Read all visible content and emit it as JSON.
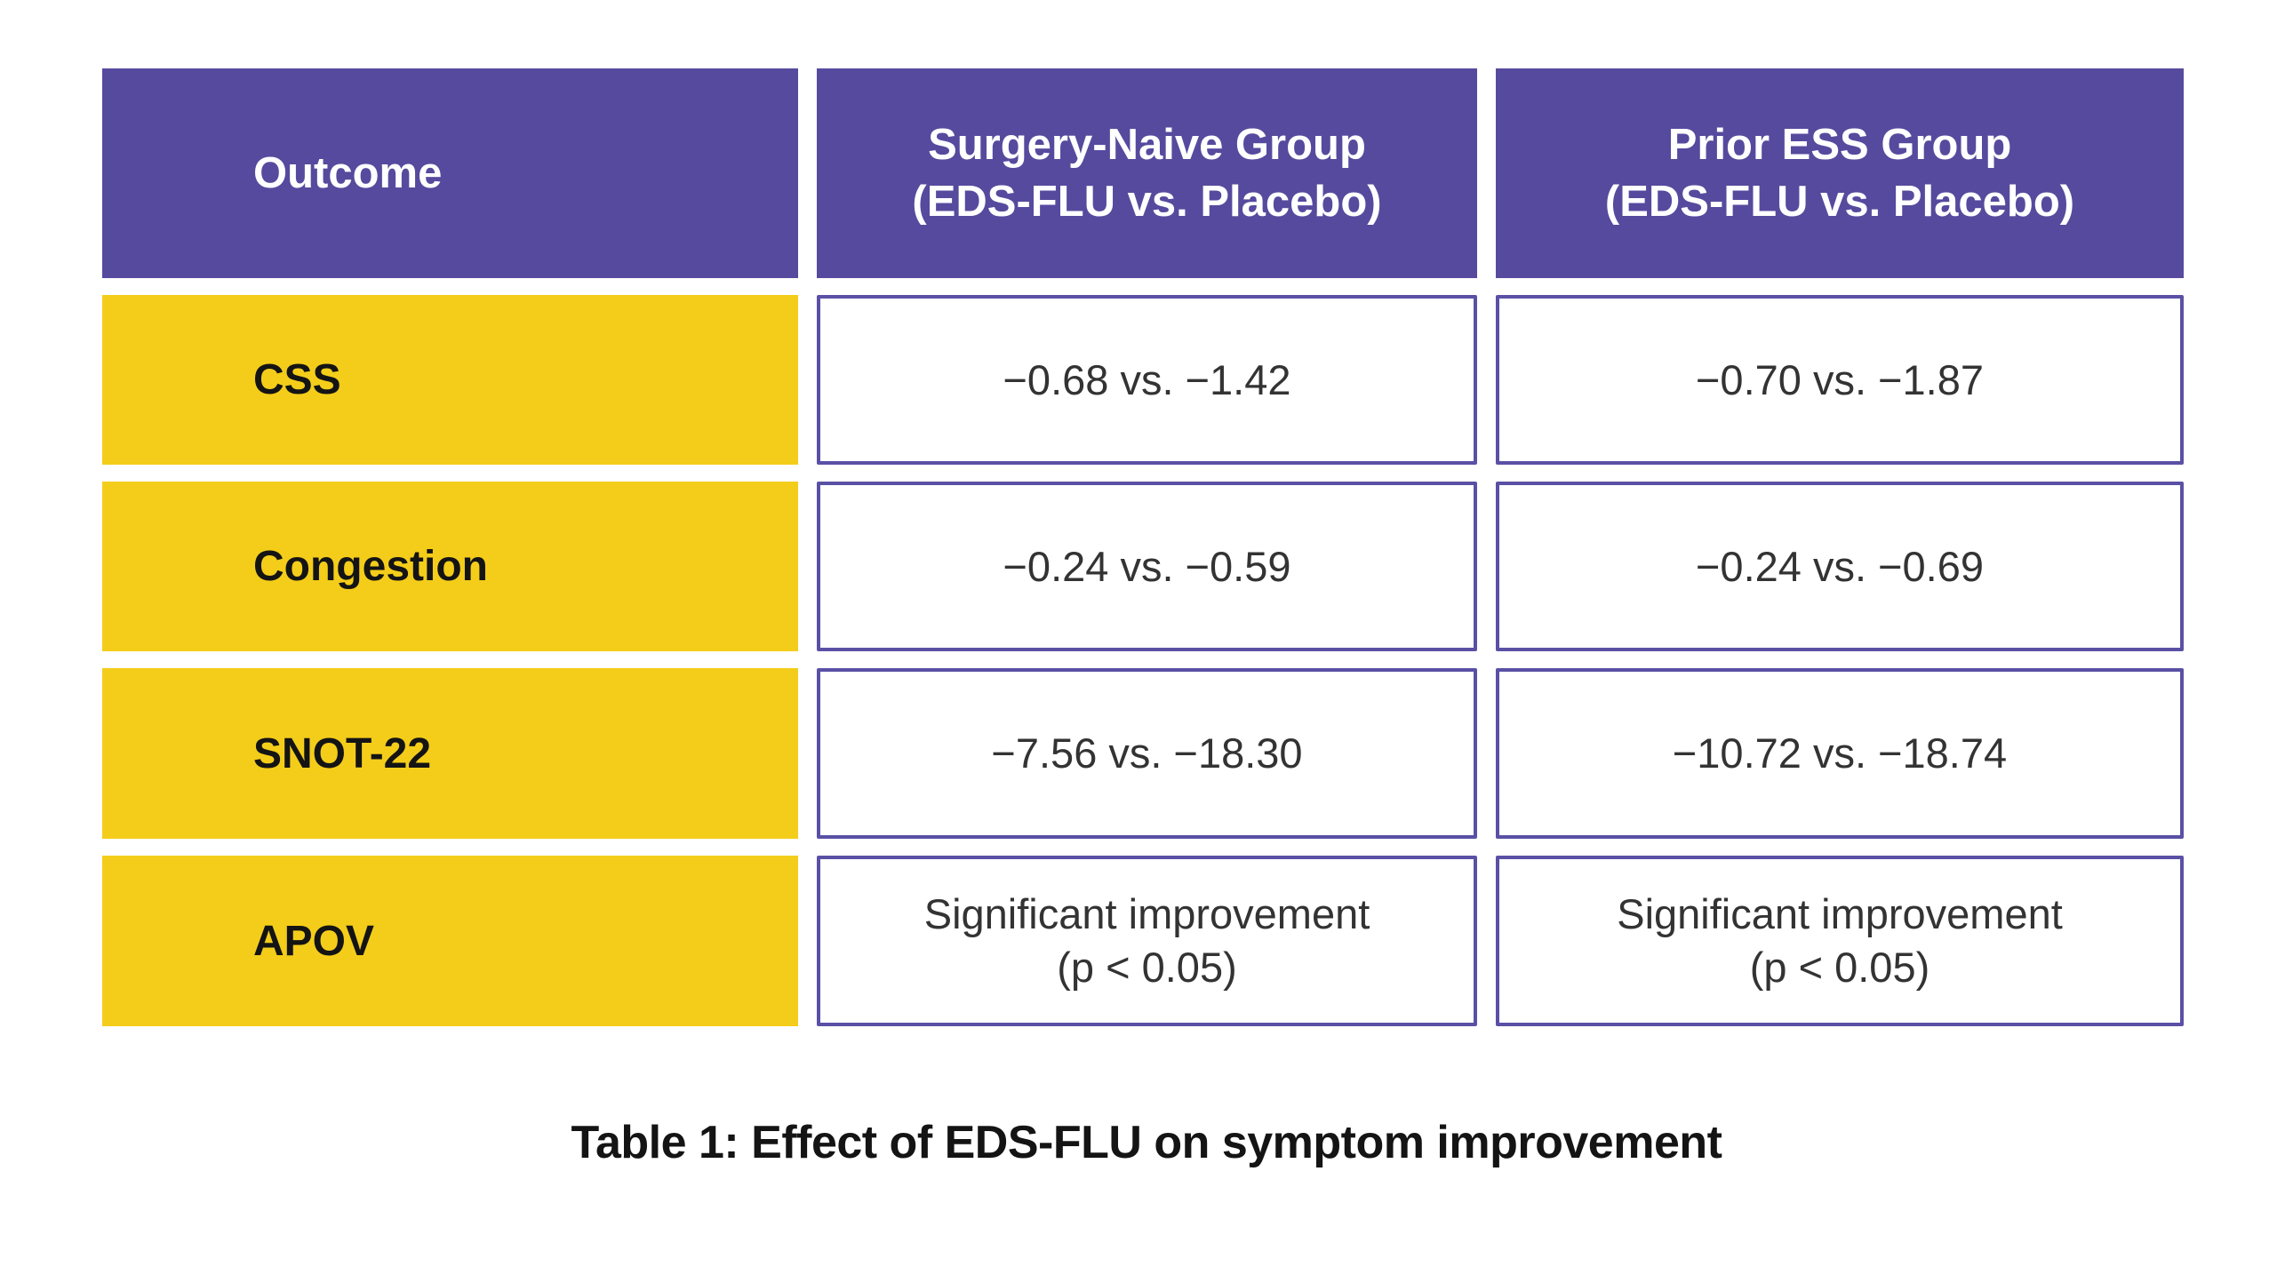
{
  "colors": {
    "header_bg": "#564A9E",
    "header_text": "#FFFFFF",
    "label_bg": "#F4CD1A",
    "label_text": "#141414",
    "cell_border": "#5A50A5",
    "cell_bg": "#FFFFFF",
    "cell_text": "#333333",
    "caption_text": "#141414",
    "page_bg": "#FFFFFF"
  },
  "table": {
    "headers": [
      "Outcome",
      "Surgery-Naive Group\n(EDS-FLU vs. Placebo)",
      "Prior ESS Group\n(EDS-FLU vs. Placebo)"
    ],
    "rows": [
      {
        "label": "CSS",
        "surgery_naive": "−0.68 vs. −1.42",
        "prior_ess": "−0.70 vs. −1.87"
      },
      {
        "label": "Congestion",
        "surgery_naive": "−0.24 vs. −0.59",
        "prior_ess": "−0.24 vs. −0.69"
      },
      {
        "label": "SNOT-22",
        "surgery_naive": "−7.56 vs. −18.30",
        "prior_ess": "−10.72 vs. −18.74"
      },
      {
        "label": "APOV",
        "surgery_naive": "Significant improvement\n(p < 0.05)",
        "prior_ess": "Significant improvement\n(p < 0.05)"
      }
    ]
  },
  "caption": "Table 1: Effect of EDS-FLU on symptom improvement"
}
